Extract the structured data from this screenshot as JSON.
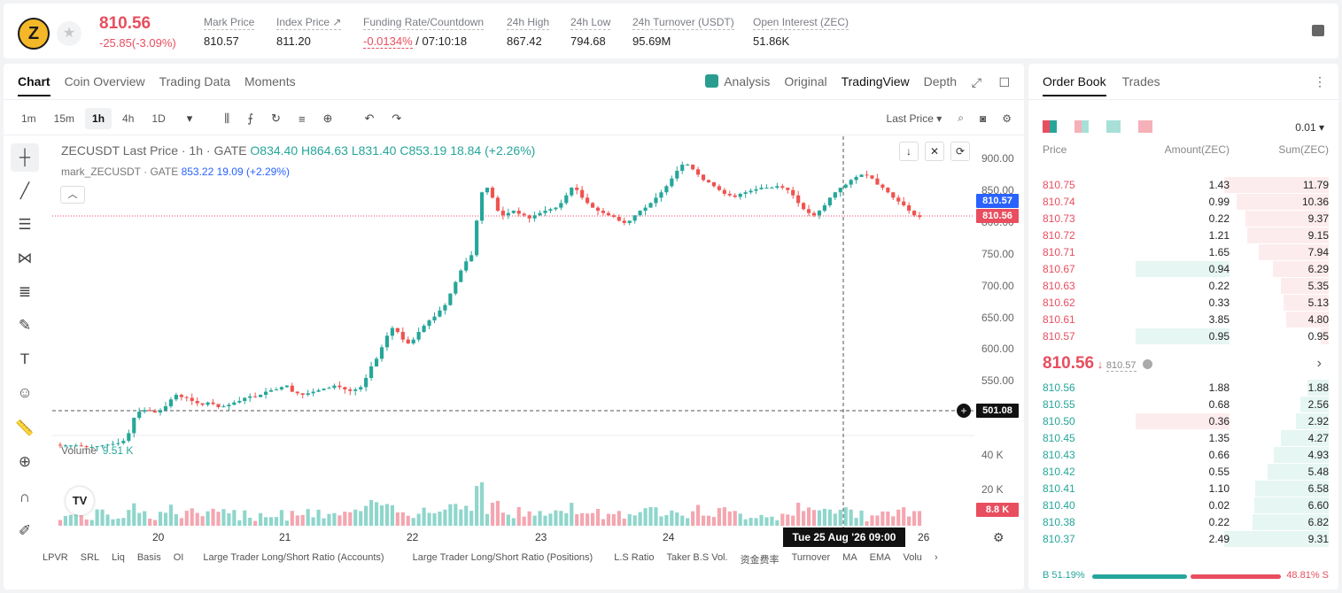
{
  "header": {
    "symbol_icon": "zcash-z-icon",
    "last_price": "810.56",
    "change": "-25.85(-3.09%)",
    "stats": [
      {
        "label": "Mark Price",
        "value": "810.57"
      },
      {
        "label": "Index Price ↗",
        "value": "811.20"
      },
      {
        "label": "Funding Rate/Countdown",
        "value": "-0.0134%",
        "value2": "/ 07:10:18"
      },
      {
        "label": "24h High",
        "value": "867.42"
      },
      {
        "label": "24h Low",
        "value": "794.68"
      },
      {
        "label": "24h Turnover (USDT)",
        "value": "95.69M"
      },
      {
        "label": "Open Interest (ZEC)",
        "value": "51.86K"
      }
    ]
  },
  "chart": {
    "tabs": [
      "Chart",
      "Coin Overview",
      "Trading Data",
      "Moments"
    ],
    "right_tabs": [
      "Analysis",
      "Original",
      "TradingView",
      "Depth"
    ],
    "intervals": [
      "1m",
      "15m",
      "1h",
      "4h",
      "1D"
    ],
    "price_type": "Last Price",
    "legend_title": "ZECUSDT Last Price · 1h · GATE",
    "ohlc": {
      "o": "O834.40",
      "h": "H864.63",
      "l": "L831.40",
      "c": "C853.19",
      "chg": "18.84 (+2.26%)"
    },
    "mark_line": "mark_ZECUSDT · GATE",
    "mark_vals": "853.22  19.09 (+2.29%)",
    "volume_label": "Volume",
    "volume_value": "9.51 K",
    "price_labels": [
      "900.00",
      "850.00",
      "800.00",
      "750.00",
      "700.00",
      "650.00",
      "600.00",
      "550.00"
    ],
    "vol_labels": [
      "40 K",
      "20 K"
    ],
    "badges": {
      "mark": "810.57",
      "last": "810.56",
      "cross": "501.08",
      "vol": "8.8 K"
    },
    "x_labels": [
      "20",
      "21",
      "22",
      "23",
      "24",
      "26"
    ],
    "crosshair_time": "Tue 25 Aug '26   09:00",
    "bottom_items": [
      "LPVR",
      "SRL",
      "Liq",
      "Basis",
      "OI",
      "Large Trader Long/Short Ratio (Accounts)",
      "Large Trader Long/Short Ratio (Positions)",
      "L.S Ratio",
      "Taker B.S Vol.",
      "资金费率",
      "Turnover",
      "MA",
      "EMA",
      "Volu"
    ],
    "colors": {
      "up": "#26a69a",
      "down": "#ef5350"
    }
  },
  "chart_data": {
    "type": "candlestick",
    "title": "ZECUSDT Last Price · 1h · GATE",
    "x_ticks": [
      "20",
      "21",
      "22",
      "23",
      "24",
      "26"
    ],
    "ylim": [
      525,
      915
    ],
    "path": [
      513,
      512,
      512,
      512,
      512,
      511,
      510,
      510,
      511,
      512,
      513,
      514,
      515,
      518,
      528,
      548,
      556,
      558,
      557,
      555,
      558,
      563,
      572,
      578,
      575,
      574,
      570,
      567,
      565,
      568,
      566,
      562,
      563,
      565,
      568,
      570,
      574,
      576,
      575,
      578,
      582,
      584,
      585,
      588,
      590,
      582,
      580,
      578,
      580,
      582,
      584,
      586,
      587,
      590,
      588,
      585,
      583,
      585,
      588,
      600,
      615,
      625,
      640,
      655,
      665,
      660,
      650,
      645,
      650,
      660,
      668,
      675,
      680,
      688,
      695,
      710,
      725,
      740,
      752,
      760,
      805,
      842,
      848,
      835,
      818,
      812,
      815,
      818,
      814,
      812,
      808,
      812,
      815,
      818,
      820,
      822,
      828,
      838,
      848,
      845,
      835,
      828,
      822,
      818,
      815,
      812,
      810,
      805,
      802,
      805,
      812,
      818,
      822,
      828,
      835,
      842,
      850,
      860,
      870,
      878,
      878,
      872,
      865,
      858,
      855,
      850,
      845,
      840,
      838,
      836,
      840,
      842,
      844,
      846,
      848,
      848,
      848,
      850,
      848,
      845,
      838,
      828,
      820,
      815,
      812,
      818,
      825,
      835,
      842,
      848,
      852,
      858,
      862,
      865,
      864,
      860,
      852,
      848,
      842,
      835,
      830,
      825,
      818,
      812,
      810
    ]
  },
  "orderbook": {
    "tabs": [
      "Order Book",
      "Trades"
    ],
    "precision": "0.01",
    "headers": [
      "Price",
      "Amount(ZEC)",
      "Sum(ZEC)"
    ],
    "asks": [
      [
        "810.75",
        "1.43",
        "11.79"
      ],
      [
        "810.74",
        "0.99",
        "10.36"
      ],
      [
        "810.73",
        "0.22",
        "9.37"
      ],
      [
        "810.72",
        "1.21",
        "9.15"
      ],
      [
        "810.71",
        "1.65",
        "7.94"
      ],
      [
        "810.67",
        "0.94",
        "6.29"
      ],
      [
        "810.63",
        "0.22",
        "5.35"
      ],
      [
        "810.62",
        "0.33",
        "5.13"
      ],
      [
        "810.61",
        "3.85",
        "4.80"
      ],
      [
        "810.57",
        "0.95",
        "0.95"
      ]
    ],
    "mid_price": "810.56",
    "mid_arrow": "↓",
    "mid_mark": "810.57",
    "bids": [
      [
        "810.56",
        "1.88",
        "1.88"
      ],
      [
        "810.55",
        "0.68",
        "2.56"
      ],
      [
        "810.50",
        "0.36",
        "2.92"
      ],
      [
        "810.45",
        "1.35",
        "4.27"
      ],
      [
        "810.43",
        "0.66",
        "4.93"
      ],
      [
        "810.42",
        "0.55",
        "5.48"
      ],
      [
        "810.41",
        "1.10",
        "6.58"
      ],
      [
        "810.40",
        "0.02",
        "6.60"
      ],
      [
        "810.38",
        "0.22",
        "6.82"
      ],
      [
        "810.37",
        "2.49",
        "9.31"
      ]
    ],
    "buy_ratio": "B 51.19%",
    "sell_ratio": "48.81% S",
    "buy_pct": 51.19
  }
}
